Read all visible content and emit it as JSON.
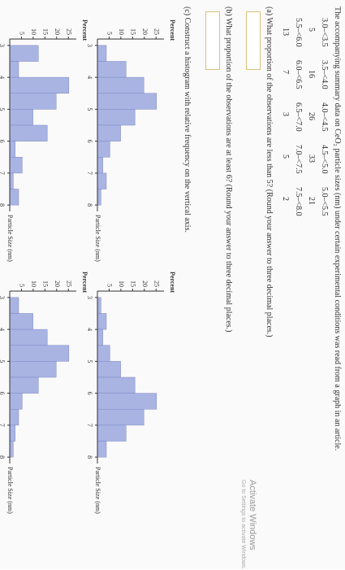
{
  "intro": "The accompanying summary data on CeO₂ particle sizes (nm) under certain experimental conditions was read from a graph in an article.",
  "table": {
    "rows": [
      [
        "3.0–<3.5",
        "3.5–<4.0",
        "4.0–<4.5",
        "4.5–<5.0",
        "5.0–<5.5"
      ],
      [
        5,
        16,
        26,
        33,
        21
      ],
      [
        "5.5–<6.0",
        "6.0–<6.5",
        "6.5–<7.0",
        "7.0–<7.5",
        "7.5–<8.0"
      ],
      [
        13,
        7,
        3,
        5,
        2
      ]
    ]
  },
  "question_a": "(a) What proportion of the observations are less than 5? (Round your answer to three decimal places.)",
  "question_b": "(b) What proportion of the observations are at least 6? (Round your answer to three decimal places.)",
  "question_c": "(c) Construct a histogram with relative frequency on the vertical axis.",
  "watermark": {
    "title": "Activate Windows",
    "subtitle": "Go to Settings to activate Windows."
  },
  "chart_data": [
    {
      "type": "histogram",
      "ylabel": "Percent",
      "xlabel": "Particle Size (nm)",
      "bins": [
        3,
        3.5,
        4,
        4.5,
        5,
        5.5,
        6,
        6.5,
        7,
        7.5,
        8
      ],
      "values": [
        3.8,
        12.2,
        19.8,
        25.2,
        16,
        9.9,
        5.3,
        2.3,
        3.8,
        1.5
      ],
      "color": "#a9b4e3",
      "xlim": [
        2.8,
        8.2
      ],
      "ylim": [
        0,
        27
      ],
      "xticks": [
        3,
        4,
        5,
        6,
        7,
        8
      ],
      "yticks": [
        5,
        10,
        15,
        20,
        25
      ]
    },
    {
      "type": "histogram",
      "ylabel": "Percent",
      "xlabel": "Particle Size (nm)",
      "bins": [
        3,
        3.5,
        4,
        4.5,
        5,
        5.5,
        6,
        6.5,
        7,
        7.5,
        8
      ],
      "values": [
        1.5,
        3.8,
        2.3,
        5.3,
        9.9,
        16,
        25.2,
        19.8,
        12.2,
        3.8
      ],
      "color": "#a9b4e3",
      "xlim": [
        2.8,
        8.2
      ],
      "ylim": [
        0,
        27
      ],
      "xticks": [
        3,
        4,
        5,
        6,
        7,
        8
      ],
      "yticks": [
        5,
        10,
        15,
        20,
        25
      ]
    },
    {
      "type": "histogram",
      "ylabel": "Percent",
      "xlabel": "Particle Size (nm)",
      "bins": [
        3,
        3.5,
        4,
        4.5,
        5,
        5.5,
        6,
        6.5,
        7,
        7.5,
        8
      ],
      "values": [
        12.2,
        3.8,
        25.2,
        19.8,
        9.9,
        16,
        2.3,
        5.3,
        1.5,
        3.8
      ],
      "color": "#a9b4e3",
      "xlim": [
        2.8,
        8.2
      ],
      "ylim": [
        0,
        27
      ],
      "xticks": [
        3,
        4,
        5,
        6,
        7,
        8
      ],
      "yticks": [
        5,
        10,
        15,
        20,
        25
      ]
    },
    {
      "type": "histogram",
      "ylabel": "Percent",
      "xlabel": "Particle Size (nm)",
      "bins": [
        3,
        3.5,
        4,
        4.5,
        5,
        5.5,
        6,
        6.5,
        7,
        7.5,
        8
      ],
      "values": [
        3.8,
        9.9,
        16,
        25.2,
        19.8,
        12.2,
        5.3,
        3.8,
        2.3,
        1.5
      ],
      "color": "#a9b4e3",
      "xlim": [
        2.8,
        8.2
      ],
      "ylim": [
        0,
        27
      ],
      "xticks": [
        3,
        4,
        5,
        6,
        7,
        8
      ],
      "yticks": [
        5,
        10,
        15,
        20,
        25
      ]
    }
  ]
}
